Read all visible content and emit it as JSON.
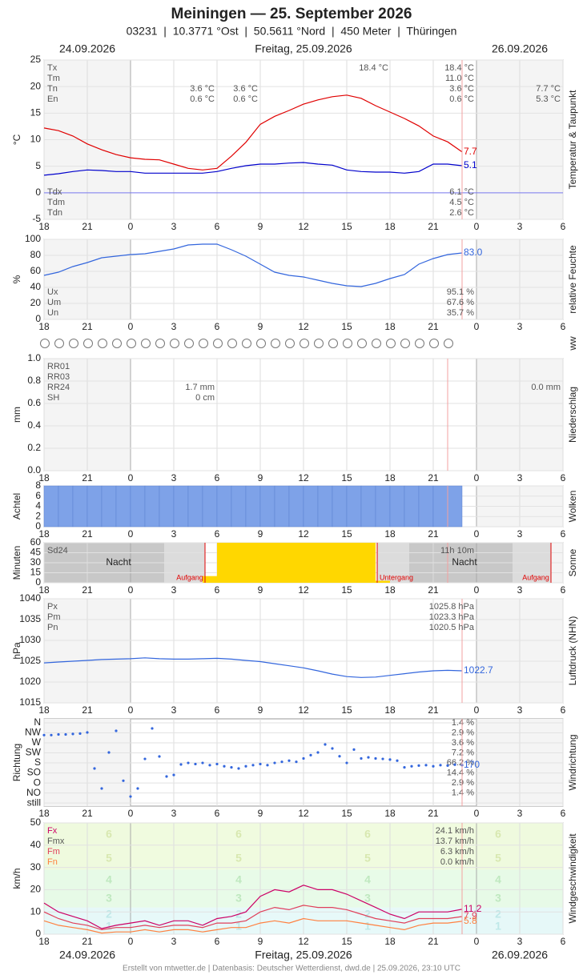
{
  "header": {
    "title": "Meiningen  —  25. September 2026",
    "subtitle": "03231  |  10.3771 °Ost  |  50.5611 °Nord  |  450 Meter  |  Thüringen",
    "days": [
      "24.09.2026",
      "Freitag, 25.09.2026",
      "26.09.2026"
    ]
  },
  "footer": "Erstellt von mtwetter.de | Datenbasis: Deutscher Wetterdienst, dwd.de | 25.09.2026, 23:10 UTC",
  "time_axis": {
    "xlim": [
      18,
      54
    ],
    "xticks": [
      18,
      21,
      {
        "value": 24,
        "label": "0"
      },
      {
        "value": 27,
        "label": "3"
      },
      {
        "value": 30,
        "label": "6"
      },
      {
        "value": 33,
        "label": "9"
      },
      {
        "value": 36,
        "label": "12"
      },
      {
        "value": 39,
        "label": "15"
      },
      {
        "value": 42,
        "label": "18"
      },
      {
        "value": 45,
        "label": "21"
      },
      {
        "value": 48,
        "label": "0"
      },
      {
        "value": 51,
        "label": "3"
      },
      {
        "value": 54,
        "label": "6"
      }
    ]
  },
  "chart_data": [
    {
      "type": "line",
      "ylabel": "°C",
      "side_label": "Temperatur & Taupunkt",
      "ylim": [
        -5,
        25
      ],
      "yticks": [
        -5,
        0,
        5,
        10,
        15,
        20,
        25
      ],
      "zero_line": true,
      "x": [
        18,
        19,
        20,
        21,
        22,
        23,
        24,
        25,
        26,
        27,
        28,
        29,
        30,
        31,
        32,
        33,
        34,
        35,
        36,
        37,
        38,
        39,
        40,
        41,
        42,
        43,
        44,
        45,
        46,
        47
      ],
      "series": [
        {
          "color": "#e00000",
          "values": [
            12.2,
            11.7,
            10.7,
            9.2,
            8.1,
            7.2,
            6.6,
            6.3,
            6.2,
            5.4,
            4.6,
            4.3,
            4.6,
            6.9,
            9.5,
            12.9,
            14.4,
            15.5,
            16.7,
            17.5,
            18.1,
            18.4,
            17.8,
            16.4,
            15.2,
            14.0,
            12.6,
            10.7,
            9.6,
            7.7
          ]
        },
        {
          "color": "#0000cc",
          "values": [
            3.3,
            3.6,
            4.0,
            4.3,
            4.2,
            4.0,
            4.0,
            3.7,
            3.7,
            3.7,
            3.7,
            3.7,
            4.0,
            4.6,
            5.1,
            5.4,
            5.4,
            5.6,
            5.7,
            5.4,
            5.2,
            4.3,
            4.0,
            3.9,
            3.9,
            3.7,
            4.0,
            5.4,
            5.4,
            5.1
          ]
        }
      ],
      "stats": [
        {
          "label": "Tx",
          "text": "18.4 °C"
        },
        {
          "label": "Tm",
          "text": "11.0 °C"
        },
        {
          "label": "Tn",
          "text": "3.6 °C"
        },
        {
          "label": "En",
          "text": "0.6 °C"
        }
      ],
      "stats_bottom": [
        {
          "label": "Tdx",
          "text": "6.1 °C"
        },
        {
          "label": "Tdm",
          "text": "4.5 °C"
        },
        {
          "label": "Tdn",
          "text": "2.6 °C"
        }
      ],
      "day_notes": [
        {
          "Tn": "3.6 °C",
          "En": "0.6 °C"
        },
        {
          "Tn": "3.6 °C",
          "En": "0.6 °C"
        },
        {
          "Tx": "18.4 °C"
        },
        {
          "Tn": "7.7 °C",
          "En": "5.3 °C"
        }
      ]
    },
    {
      "type": "line",
      "ylabel": "%",
      "side_label": "relative Feuchte",
      "ylim": [
        0,
        100
      ],
      "yticks": [
        0,
        20,
        40,
        60,
        80,
        100
      ],
      "x": [
        18,
        19,
        20,
        21,
        22,
        23,
        24,
        25,
        26,
        27,
        28,
        29,
        30,
        31,
        32,
        33,
        34,
        35,
        36,
        37,
        38,
        39,
        40,
        41,
        42,
        43,
        44,
        45,
        46,
        47
      ],
      "series": [
        {
          "color": "#3366dd",
          "values": [
            55,
            59,
            66,
            71,
            77,
            79,
            81,
            82,
            85,
            88,
            93,
            94,
            94,
            87,
            79,
            69,
            59,
            55,
            53,
            49,
            45,
            42,
            41,
            45,
            51,
            56,
            69,
            76,
            81,
            83
          ],
          "end_label": "83.0"
        }
      ],
      "stats_bottom": [
        {
          "label": "Ux",
          "text": "95.1 %"
        },
        {
          "label": "Um",
          "text": "67.6 %"
        },
        {
          "label": "Un",
          "text": "35.7 %"
        }
      ]
    },
    {
      "type": "symbols",
      "side_label": "ww"
    },
    {
      "type": "bar",
      "ylabel": "mm",
      "side_label": "Niederschlag",
      "ylim": [
        0,
        1
      ],
      "yticks": [
        {
          "value": 0,
          "label": "0.0"
        },
        0.2,
        0.4,
        0.6,
        0.8,
        {
          "value": 1,
          "label": "1.0"
        }
      ],
      "x": [
        18,
        19,
        20,
        21,
        22,
        23,
        24,
        25,
        26,
        27,
        28,
        29,
        30,
        31,
        32,
        33,
        34,
        35,
        36,
        37,
        38,
        39,
        40,
        41,
        42,
        43,
        44,
        45,
        46
      ],
      "series": [
        {
          "color": "#3366dd",
          "values": [
            0,
            0,
            0,
            0,
            0,
            0,
            0,
            0,
            0,
            0,
            0,
            0,
            0,
            0,
            0,
            0,
            0,
            0,
            0,
            0,
            0,
            0,
            0,
            0,
            0,
            0,
            0,
            0,
            0
          ]
        }
      ],
      "stats": [
        {
          "label": "RR01"
        },
        {
          "label": "RR03"
        },
        {
          "label": "RR24"
        },
        {
          "label": "SH"
        }
      ],
      "day_notes": [
        {
          "RR24": "1.7 mm",
          "SH": "0 cm"
        },
        {
          "RR24": "0.0 mm"
        }
      ]
    },
    {
      "type": "bar",
      "ylabel": "Achtel",
      "side_label": "Wolken",
      "ylim": [
        0,
        8
      ],
      "yticks": [
        0,
        2,
        4,
        6,
        8
      ],
      "x": [
        18,
        19,
        20,
        21,
        22,
        23,
        24,
        25,
        26,
        27,
        28,
        29,
        30,
        31,
        32,
        33,
        34,
        35,
        36,
        37,
        38,
        39,
        40,
        41,
        42,
        43,
        44,
        45,
        46
      ],
      "series": [
        {
          "color": "#7ea2e8",
          "values": [
            8,
            8,
            8,
            8,
            8,
            8,
            8,
            8,
            8,
            8,
            8,
            8,
            8,
            8,
            8,
            8,
            8,
            8,
            8,
            8,
            8,
            8,
            8,
            8,
            8,
            8,
            8,
            8,
            8
          ]
        }
      ]
    },
    {
      "type": "bar",
      "ylabel": "Minuten",
      "side_label": "Sonne",
      "ylim": [
        0,
        60
      ],
      "yticks": [
        0,
        15,
        30,
        45,
        60
      ],
      "x": [
        18,
        19,
        20,
        21,
        22,
        23,
        24,
        25,
        26,
        27,
        28,
        29,
        30,
        31,
        32,
        33,
        34,
        35,
        36,
        37,
        38,
        39,
        40,
        41,
        42,
        43,
        44,
        45,
        46
      ],
      "series": [
        {
          "color": "#ffd700",
          "values": [
            0,
            0,
            0,
            0,
            0,
            0,
            0,
            0,
            0,
            0,
            0,
            10,
            60,
            60,
            60,
            60,
            60,
            60,
            60,
            60,
            60,
            60,
            60,
            3,
            0,
            0,
            0,
            0,
            0
          ]
        }
      ],
      "stats": [
        {
          "label": "Sd24",
          "text": "11h 10m"
        }
      ],
      "annotations": [
        {
          "text": "Nacht"
        },
        {
          "text": "Nacht"
        },
        {
          "text": "Aufgang",
          "color": "#e00000"
        },
        {
          "text": "Untergang",
          "color": "#e00000"
        },
        {
          "text": "Aufgang",
          "color": "#e00000"
        }
      ]
    },
    {
      "type": "line",
      "ylabel": "hPa",
      "side_label": "Luftdruck (NHN)",
      "ylim": [
        1015,
        1040
      ],
      "yticks": [
        1015,
        1020,
        1025,
        1030,
        1035,
        1040
      ],
      "x": [
        18,
        19,
        20,
        21,
        22,
        23,
        24,
        25,
        26,
        27,
        28,
        29,
        30,
        31,
        32,
        33,
        34,
        35,
        36,
        37,
        38,
        39,
        40,
        41,
        42,
        43,
        44,
        45,
        46,
        47
      ],
      "series": [
        {
          "color": "#3366dd",
          "values": [
            1024.6,
            1024.8,
            1025.0,
            1025.2,
            1025.4,
            1025.5,
            1025.6,
            1025.8,
            1025.6,
            1025.5,
            1025.5,
            1025.6,
            1025.7,
            1025.5,
            1025.2,
            1024.9,
            1024.4,
            1023.9,
            1023.4,
            1022.7,
            1021.9,
            1021.3,
            1021.1,
            1021.2,
            1021.6,
            1022.0,
            1022.4,
            1022.7,
            1022.8,
            1022.7
          ]
        }
      ],
      "stats": [
        {
          "label": "Px",
          "text": "1025.8 hPa"
        },
        {
          "label": "Pm",
          "text": "1023.3 hPa"
        },
        {
          "label": "Pn",
          "text": "1020.5 hPa"
        }
      ]
    },
    {
      "type": "scatter",
      "ylabel": "Richtung",
      "side_label": "Windrichtung",
      "ylim": [
        -14,
        378
      ],
      "yticks": [
        {
          "value": 0,
          "label": "still"
        },
        {
          "value": 45,
          "label": "NO"
        },
        {
          "value": 90,
          "label": "O"
        },
        {
          "value": 135,
          "label": "SO"
        },
        {
          "value": 180,
          "label": "S"
        },
        {
          "value": 225,
          "label": "SW"
        },
        {
          "value": 270,
          "label": "W"
        },
        {
          "value": 315,
          "label": "NW"
        },
        {
          "value": 360,
          "label": "N"
        }
      ],
      "tick_notes": {
        "N": "1.4 %",
        "NW": "2.9 %",
        "W": "3.6 %",
        "SW": "7.2 %",
        "S": "66.2 %",
        "SO": "14.4 %",
        "O": "2.9 %",
        "NO": "1.4 %"
      },
      "x": [
        18,
        18.5,
        19,
        19.5,
        20,
        20.5,
        21,
        21.5,
        22,
        22.5,
        23,
        23.5,
        24,
        24.5,
        25,
        25.5,
        26,
        26.5,
        27,
        27.5,
        28,
        28.5,
        29,
        29.5,
        30,
        30.5,
        31,
        31.5,
        32,
        32.5,
        33,
        33.5,
        34,
        34.5,
        35,
        35.5,
        36,
        36.5,
        37,
        37.5,
        38,
        38.5,
        39,
        39.5,
        40,
        40.5,
        41,
        41.5,
        42,
        42.5,
        43,
        43.5,
        44,
        44.5,
        45,
        45.5,
        46,
        46.5,
        47
      ],
      "series": [
        {
          "color": "#3366dd",
          "values": [
            305,
            305,
            308,
            308,
            310,
            312,
            317,
            155,
            65,
            227,
            324,
            100,
            29,
            65,
            198,
            335,
            209,
            119,
            126,
            173,
            180,
            175,
            180,
            170,
            175,
            165,
            160,
            155,
            165,
            170,
            175,
            170,
            180,
            185,
            190,
            185,
            200,
            215,
            227,
            263,
            245,
            210,
            180,
            240,
            200,
            205,
            200,
            198,
            195,
            190,
            160,
            165,
            168,
            170,
            165,
            170,
            168,
            172,
            170
          ]
        }
      ]
    },
    {
      "type": "line",
      "ylabel": "km/h",
      "side_label": "Windgeschwindigkeit",
      "ylim": [
        0,
        50
      ],
      "yticks": [
        0,
        10,
        20,
        30,
        40,
        50
      ],
      "beaufort": [
        1,
        2,
        3,
        4,
        5,
        6
      ],
      "x": [
        18,
        19,
        20,
        21,
        22,
        23,
        24,
        25,
        26,
        27,
        28,
        29,
        30,
        31,
        32,
        33,
        34,
        35,
        36,
        37,
        38,
        39,
        40,
        41,
        42,
        43,
        44,
        45,
        46,
        47
      ],
      "series": [
        {
          "color": "#cc0066",
          "values": [
            14,
            10,
            8,
            6,
            2.5,
            4,
            5,
            6,
            4,
            6,
            6,
            4,
            7,
            8,
            10,
            17,
            20,
            19,
            22,
            20,
            20,
            18,
            15,
            12,
            9,
            7,
            10,
            10,
            10,
            11.2
          ]
        },
        {
          "color": "#e0405a",
          "values": [
            10,
            7,
            5,
            4,
            2,
            3,
            3,
            4,
            3,
            4,
            4,
            3,
            5,
            5,
            6,
            10,
            12,
            11,
            13,
            12,
            12,
            11,
            9,
            7,
            6,
            5,
            7,
            7,
            7,
            7.9
          ]
        },
        {
          "color": "#ff8040",
          "values": [
            6,
            4,
            3,
            2,
            0.5,
            1,
            1,
            2,
            1,
            2,
            2,
            1,
            2,
            3,
            3,
            5,
            6,
            5,
            7,
            6,
            6,
            6,
            5,
            4,
            3,
            2,
            4,
            5,
            5,
            5.8
          ]
        }
      ],
      "stats": [
        {
          "label": "Fx",
          "text": "24.1 km/h",
          "color": "#cc0066"
        },
        {
          "label": "Fmx",
          "text": "13.7 km/h",
          "color": "#555555"
        },
        {
          "label": "Fm",
          "text": "6.3 km/h",
          "color": "#e0405a"
        },
        {
          "label": "Fn",
          "text": "0.0 km/h",
          "color": "#ff8040"
        }
      ]
    }
  ]
}
